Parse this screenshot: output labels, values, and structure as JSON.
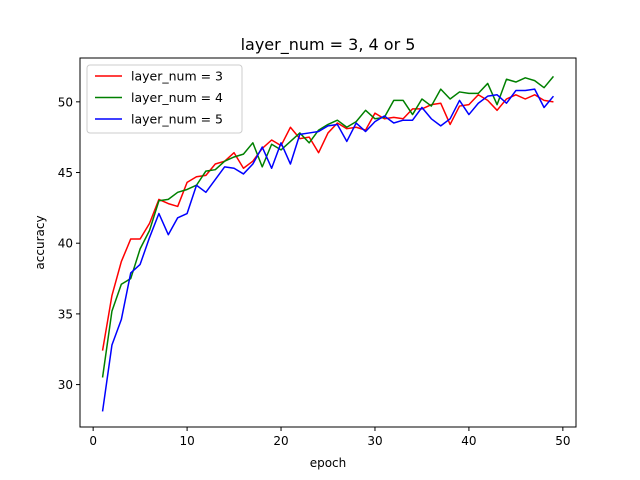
{
  "chart_data": {
    "type": "line",
    "title": "layer_num = 3, 4 or 5",
    "xlabel": "epoch",
    "ylabel": "accuracy",
    "xlim": [
      -1.4,
      51.4
    ],
    "ylim": [
      27.0,
      53.1
    ],
    "xticks": [
      0,
      10,
      20,
      30,
      40,
      50
    ],
    "yticks": [
      30,
      35,
      40,
      45,
      50
    ],
    "grid": false,
    "legend_position": "upper-left",
    "x": [
      1,
      2,
      3,
      4,
      5,
      6,
      7,
      8,
      9,
      10,
      11,
      12,
      13,
      14,
      15,
      16,
      17,
      18,
      19,
      20,
      21,
      22,
      23,
      24,
      25,
      26,
      27,
      28,
      29,
      30,
      31,
      32,
      33,
      34,
      35,
      36,
      37,
      38,
      39,
      40,
      41,
      42,
      43,
      44,
      45,
      46,
      47,
      48,
      49
    ],
    "series": [
      {
        "name": "layer_num = 3",
        "color": "#ff0000",
        "values": [
          32.4,
          36.3,
          38.7,
          40.3,
          40.3,
          41.4,
          43.1,
          42.8,
          42.6,
          44.3,
          44.7,
          44.8,
          45.6,
          45.8,
          46.4,
          45.3,
          45.8,
          46.7,
          47.3,
          46.9,
          48.2,
          47.4,
          47.5,
          46.4,
          47.8,
          48.5,
          48.1,
          48.2,
          48.0,
          49.2,
          48.8,
          48.9,
          48.8,
          49.5,
          49.5,
          49.8,
          49.9,
          48.4,
          49.7,
          49.8,
          50.5,
          50.1,
          49.4,
          50.2,
          50.5,
          50.2,
          50.5,
          50.1,
          50.0
        ]
      },
      {
        "name": "layer_num = 4",
        "color": "#008000",
        "values": [
          30.5,
          35.2,
          37.1,
          37.5,
          39.6,
          40.9,
          43.0,
          43.1,
          43.6,
          43.8,
          44.1,
          45.1,
          45.2,
          45.8,
          46.1,
          46.3,
          47.1,
          45.4,
          47.0,
          46.6,
          47.2,
          47.8,
          47.1,
          48.0,
          48.4,
          48.7,
          48.2,
          48.6,
          49.4,
          48.8,
          48.9,
          50.1,
          50.1,
          49.1,
          50.2,
          49.7,
          50.9,
          50.2,
          50.7,
          50.6,
          50.6,
          51.3,
          49.8,
          51.6,
          51.4,
          51.7,
          51.5,
          51.0,
          51.8
        ]
      },
      {
        "name": "layer_num = 5",
        "color": "#0000ff",
        "values": [
          28.1,
          32.8,
          34.6,
          37.9,
          38.5,
          40.4,
          42.1,
          40.6,
          41.8,
          42.1,
          44.1,
          43.6,
          44.5,
          45.4,
          45.3,
          44.9,
          45.6,
          46.8,
          45.3,
          47.1,
          45.6,
          47.7,
          47.8,
          47.9,
          48.3,
          48.4,
          47.2,
          48.5,
          47.9,
          48.6,
          49.0,
          48.5,
          48.7,
          48.7,
          49.6,
          48.8,
          48.3,
          48.8,
          50.1,
          49.1,
          49.9,
          50.4,
          50.5,
          49.9,
          50.8,
          50.8,
          50.9,
          49.6,
          50.4
        ]
      }
    ]
  }
}
